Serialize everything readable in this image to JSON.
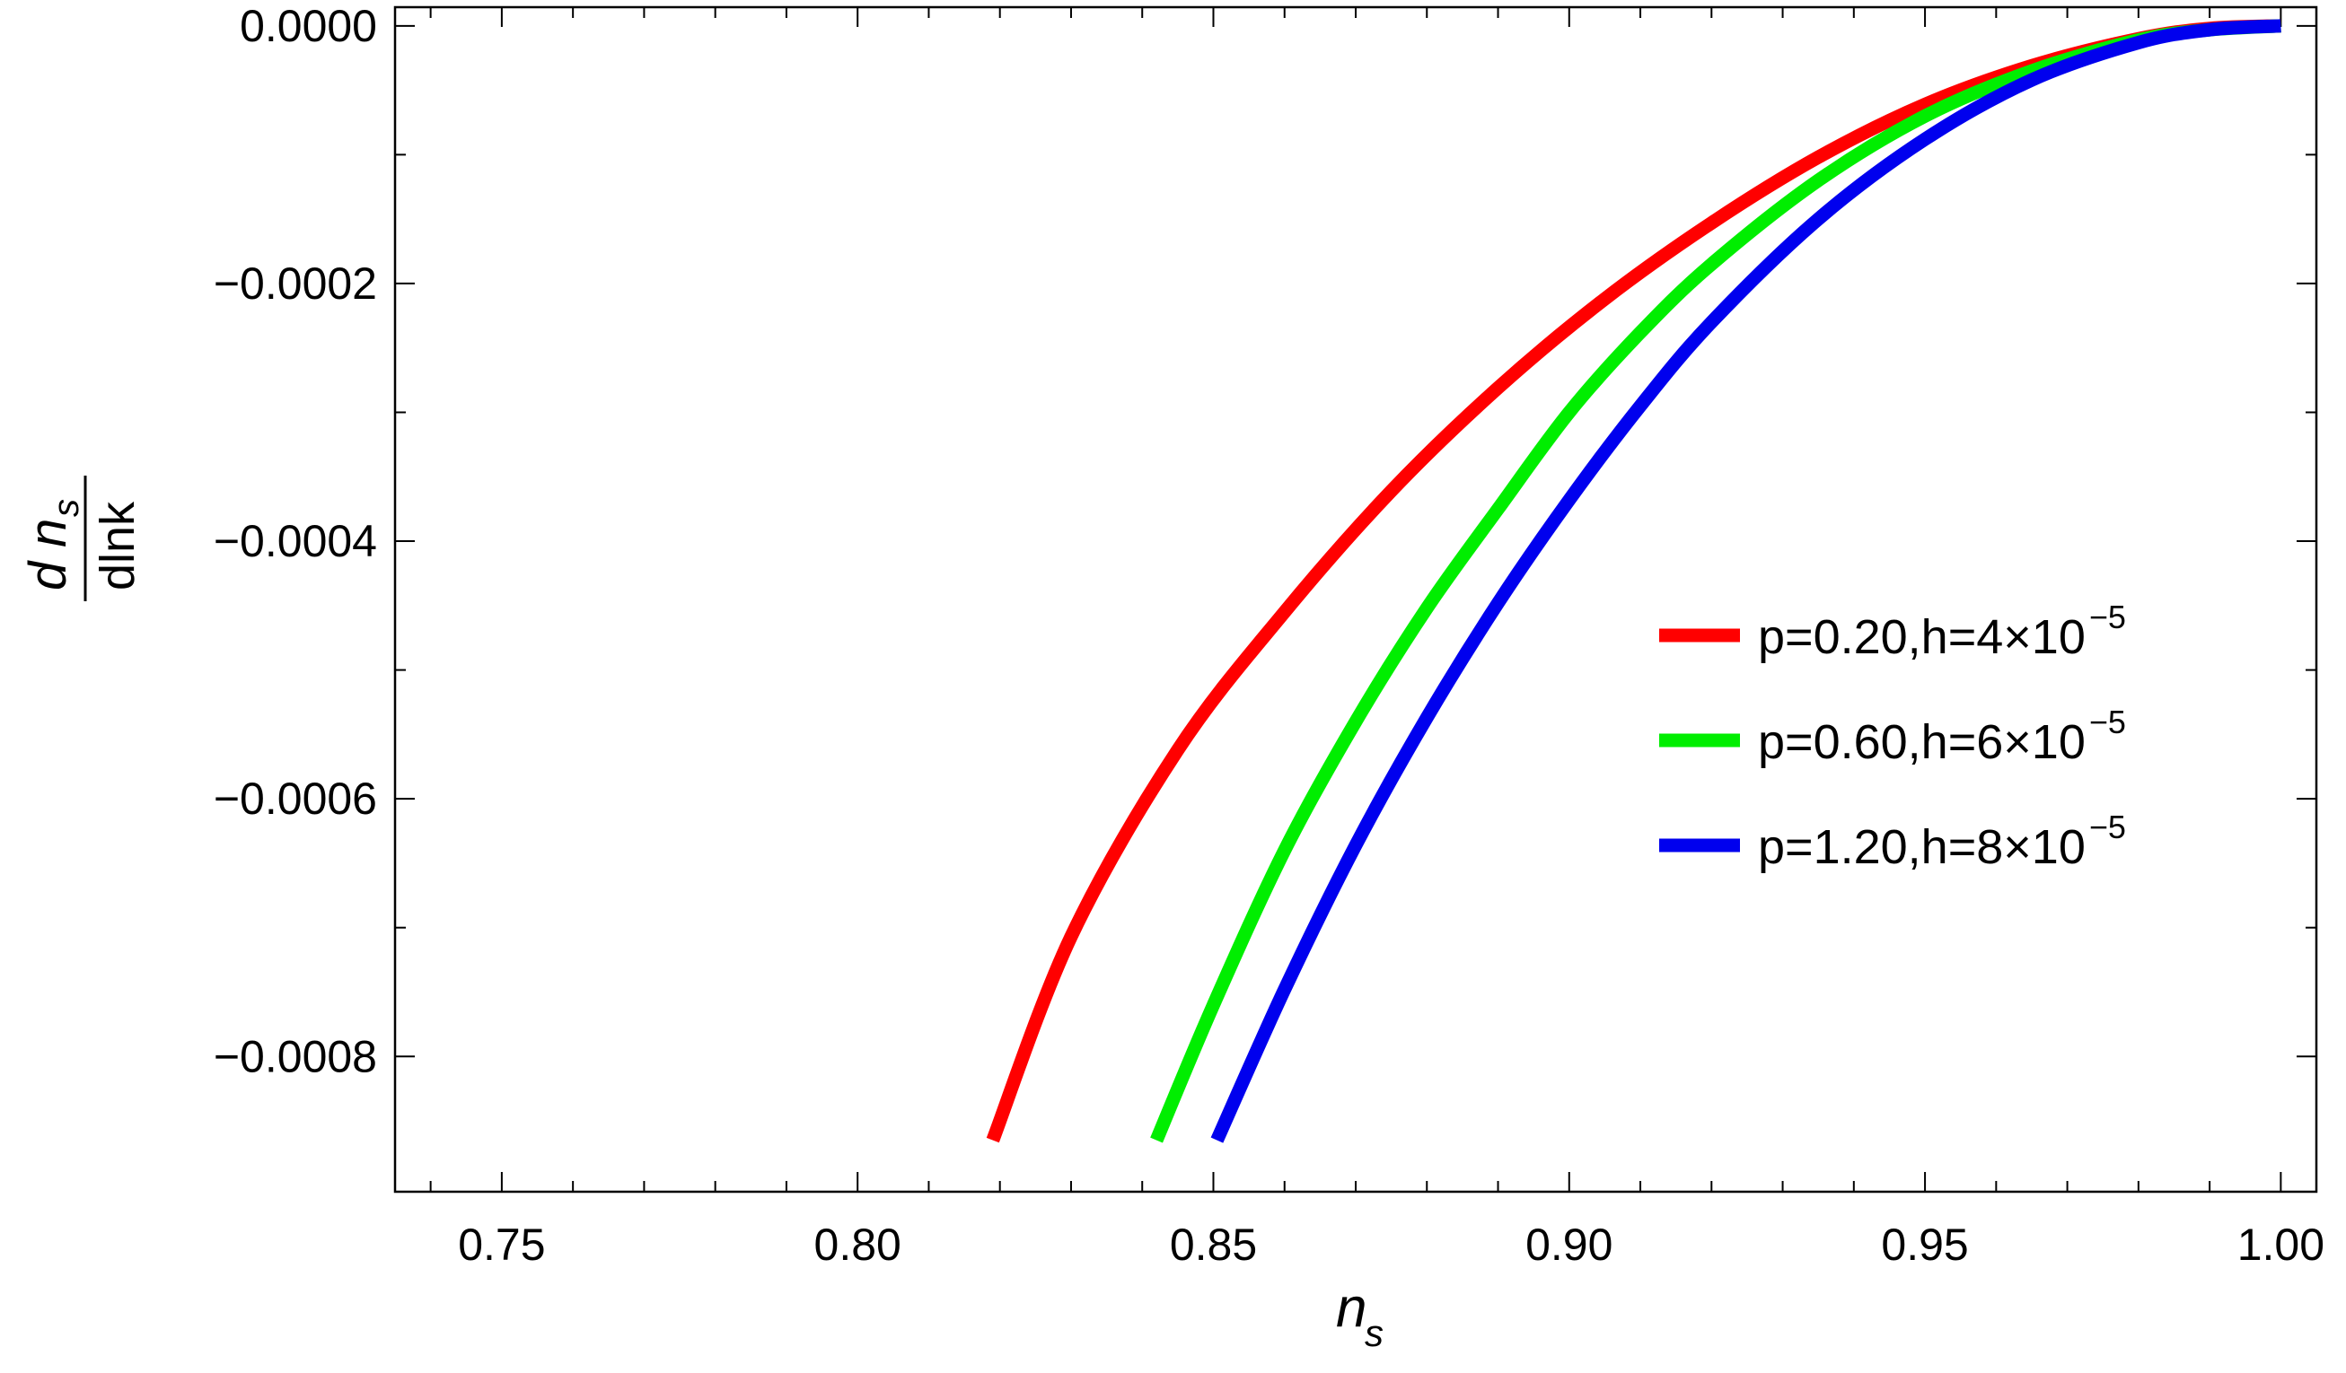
{
  "chart_data": {
    "type": "line",
    "xlabel": {
      "main": "n",
      "sub": "s"
    },
    "ylabel": {
      "numerator_d": "d",
      "numerator_n": "n",
      "numerator_sub": "s",
      "denominator": "dlnk"
    },
    "xlim": [
      0.735,
      1.005
    ],
    "ylim": [
      -0.000905,
      1.45e-05
    ],
    "x_ticks": [
      0.75,
      0.8,
      0.85,
      0.9,
      0.95,
      1.0
    ],
    "x_tick_labels": [
      "0.75",
      "0.80",
      "0.85",
      "0.90",
      "0.95",
      "1.00"
    ],
    "y_ticks": [
      0.0,
      -0.0002,
      -0.0004,
      -0.0006,
      -0.0008
    ],
    "y_tick_labels": [
      "0.0000",
      "−0.0002",
      "−0.0004",
      "−0.0006",
      "−0.0008"
    ],
    "grid": false,
    "legend_position": "right",
    "series": [
      {
        "name": "p=0.20,h=4×10",
        "name_exp": "−5",
        "color": "#ff0000",
        "x": [
          0.819,
          0.83,
          0.845,
          0.86,
          0.875,
          0.89,
          0.905,
          0.92,
          0.935,
          0.95,
          0.965,
          0.98,
          0.99,
          1.0
        ],
        "y": [
          -0.000865,
          -0.000707,
          -0.000562,
          -0.000455,
          -0.000361,
          -0.000281,
          -0.000212,
          -0.000153,
          -0.000102,
          -6.1e-05,
          -3.1e-05,
          -1e-05,
          -2e-06,
          0.0
        ]
      },
      {
        "name": "p=0.60,h=6×10",
        "name_exp": "−5",
        "color": "#00ee00",
        "x": [
          0.842,
          0.85,
          0.86,
          0.87,
          0.88,
          0.89,
          0.9,
          0.91,
          0.92,
          0.935,
          0.95,
          0.965,
          0.98,
          0.99,
          1.0
        ],
        "y": [
          -0.000865,
          -0.00076,
          -0.00064,
          -0.00054,
          -0.000452,
          -0.000375,
          -0.0003,
          -0.000238,
          -0.000185,
          -0.00012,
          -7e-05,
          -3.5e-05,
          -1.1e-05,
          -3e-06,
          0.0
        ]
      },
      {
        "name": "p=1.20,h=8×10",
        "name_exp": "−5",
        "color": "#0000ee",
        "x": [
          0.8505,
          0.86,
          0.87,
          0.88,
          0.89,
          0.9,
          0.91,
          0.92,
          0.935,
          0.95,
          0.965,
          0.98,
          0.99,
          1.0
        ],
        "y": [
          -0.000865,
          -0.000748,
          -0.000636,
          -0.000537,
          -0.000448,
          -0.000368,
          -0.000295,
          -0.00023,
          -0.00015,
          -8.8e-05,
          -4.2e-05,
          -1.3e-05,
          -3e-06,
          0.0
        ]
      }
    ]
  }
}
